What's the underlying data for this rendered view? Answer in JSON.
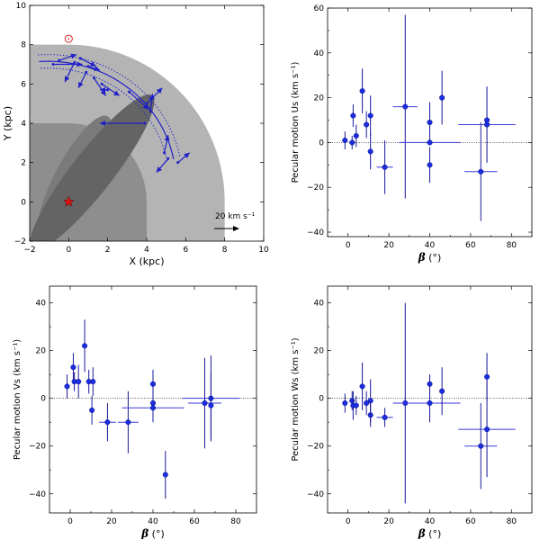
{
  "chart_data": [
    {
      "type": "scatter",
      "xlabel": "X (kpc)",
      "ylabel": "Y (kpc)",
      "xlim": [
        -2,
        10
      ],
      "ylim": [
        -2,
        10
      ],
      "xticks": [
        -2,
        0,
        2,
        4,
        6,
        8,
        10
      ],
      "yticks": [
        -2,
        0,
        2,
        4,
        6,
        8,
        10
      ],
      "annotation": "20 km s⁻¹",
      "sun": [
        0,
        8.3
      ],
      "galactic_center": [
        0,
        0
      ],
      "sources": [
        {
          "x": -0.8,
          "y": 7.0,
          "dx": 1.5,
          "dy": 0.0
        },
        {
          "x": -0.5,
          "y": 7.2,
          "dx": 0.9,
          "dy": 0.3
        },
        {
          "x": 0.3,
          "y": 7.1,
          "dx": -0.5,
          "dy": -1.0
        },
        {
          "x": 0.6,
          "y": 7.3,
          "dx": 0.8,
          "dy": -0.4
        },
        {
          "x": 0.9,
          "y": 6.6,
          "dx": -0.4,
          "dy": -0.8
        },
        {
          "x": 1.0,
          "y": 6.9,
          "dx": 0.6,
          "dy": -0.2
        },
        {
          "x": 1.3,
          "y": 6.3,
          "dx": 0.6,
          "dy": -0.9
        },
        {
          "x": 1.7,
          "y": 6.0,
          "dx": 0.9,
          "dy": -0.6
        },
        {
          "x": 2.0,
          "y": 5.7,
          "dx": -0.4,
          "dy": 0.0
        },
        {
          "x": 3.1,
          "y": 5.6,
          "dx": 1.0,
          "dy": -0.9
        },
        {
          "x": 3.9,
          "y": 4.0,
          "dx": -2.3,
          "dy": 0.0
        },
        {
          "x": 4.2,
          "y": 4.6,
          "dx": 0.1,
          "dy": 0.9
        },
        {
          "x": 4.0,
          "y": 5.0,
          "dx": 0.8,
          "dy": 0.8
        },
        {
          "x": 4.9,
          "y": 2.5,
          "dx": 0.2,
          "dy": 0.9
        },
        {
          "x": 5.1,
          "y": 2.2,
          "dx": -0.6,
          "dy": -0.7
        },
        {
          "x": 5.6,
          "y": 2.0,
          "dx": 0.6,
          "dy": 0.5
        }
      ]
    },
    {
      "type": "scatter",
      "xlabel": "β (°)",
      "ylabel": "Pecular motion Us  (km s⁻¹)",
      "xlim": [
        -10,
        90
      ],
      "ylim": [
        -42,
        60
      ],
      "xticks": [
        0,
        20,
        40,
        60,
        80
      ],
      "yticks": [
        -40,
        -20,
        0,
        20,
        40,
        60
      ],
      "points": [
        {
          "x": -1.5,
          "y": 1,
          "xerr": 0,
          "yerr": 4
        },
        {
          "x": 2,
          "y": 0,
          "xerr": 0,
          "yerr": 3
        },
        {
          "x": 2.5,
          "y": 12,
          "xerr": 0,
          "yerr": 5
        },
        {
          "x": 4,
          "y": 3,
          "xerr": 0,
          "yerr": 5
        },
        {
          "x": 7,
          "y": 23,
          "xerr": 0,
          "yerr": 10
        },
        {
          "x": 9,
          "y": 8,
          "xerr": 0,
          "yerr": 6
        },
        {
          "x": 11,
          "y": 12,
          "xerr": 0,
          "yerr": 9
        },
        {
          "x": 11,
          "y": -4,
          "xerr": 0,
          "yerr": 8
        },
        {
          "x": 18,
          "y": -11,
          "xerr": 4,
          "yerr": 12
        },
        {
          "x": 28,
          "y": 16,
          "xerr": 6,
          "yerr": 41
        },
        {
          "x": 40,
          "y": -10,
          "xerr": 0,
          "yerr": 8
        },
        {
          "x": 40,
          "y": 9,
          "xerr": 0,
          "yerr": 9
        },
        {
          "x": 40,
          "y": 0,
          "xerr": 15,
          "yerr": 0
        },
        {
          "x": 46,
          "y": 20,
          "xerr": 0,
          "yerr": 12
        },
        {
          "x": 65,
          "y": -13,
          "xerr": 8,
          "yerr": 22
        },
        {
          "x": 68,
          "y": 8,
          "xerr": 14,
          "yerr": 17
        },
        {
          "x": 68,
          "y": 10,
          "xerr": 0,
          "yerr": 0
        }
      ]
    },
    {
      "type": "scatter",
      "xlabel": "β (°)",
      "ylabel": "Pecular motion Vs  (km s⁻¹)",
      "xlim": [
        -10,
        90
      ],
      "ylim": [
        -48,
        47
      ],
      "xticks": [
        0,
        20,
        40,
        60,
        80
      ],
      "yticks": [
        -40,
        -20,
        0,
        20,
        40
      ],
      "points": [
        {
          "x": -1.5,
          "y": 5,
          "xerr": 0,
          "yerr": 5
        },
        {
          "x": 1.5,
          "y": 13,
          "xerr": 0,
          "yerr": 6
        },
        {
          "x": 2,
          "y": 7,
          "xerr": 0,
          "yerr": 4
        },
        {
          "x": 4,
          "y": 7,
          "xerr": 0,
          "yerr": 7
        },
        {
          "x": 7,
          "y": 22,
          "xerr": 0,
          "yerr": 11
        },
        {
          "x": 9,
          "y": 7,
          "xerr": 0,
          "yerr": 5
        },
        {
          "x": 11,
          "y": 7,
          "xerr": 0,
          "yerr": 6
        },
        {
          "x": 10.5,
          "y": -5,
          "xerr": 0,
          "yerr": 6
        },
        {
          "x": 18,
          "y": -10,
          "xerr": 4,
          "yerr": 8
        },
        {
          "x": 28,
          "y": -10,
          "xerr": 5,
          "yerr": 13
        },
        {
          "x": 40,
          "y": 6,
          "xerr": 0,
          "yerr": 6
        },
        {
          "x": 40,
          "y": -2,
          "xerr": 0,
          "yerr": 8
        },
        {
          "x": 40,
          "y": -4,
          "xerr": 15,
          "yerr": 0
        },
        {
          "x": 46,
          "y": -32,
          "xerr": 0,
          "yerr": 10
        },
        {
          "x": 65,
          "y": -2,
          "xerr": 8,
          "yerr": 19
        },
        {
          "x": 68,
          "y": 0,
          "xerr": 14,
          "yerr": 18
        },
        {
          "x": 68,
          "y": -3,
          "xerr": 0,
          "yerr": 14
        }
      ]
    },
    {
      "type": "scatter",
      "xlabel": "β (°)",
      "ylabel": "Pecular motion Ws  (km s⁻¹)",
      "xlim": [
        -10,
        90
      ],
      "ylim": [
        -48,
        47
      ],
      "xticks": [
        0,
        20,
        40,
        60,
        80
      ],
      "yticks": [
        -40,
        -20,
        0,
        20,
        40
      ],
      "points": [
        {
          "x": -1.5,
          "y": -2,
          "xerr": 0,
          "yerr": 4
        },
        {
          "x": 2,
          "y": -1,
          "xerr": 0,
          "yerr": 4
        },
        {
          "x": 2.5,
          "y": -3,
          "xerr": 0,
          "yerr": 6
        },
        {
          "x": 4,
          "y": -3,
          "xerr": 0,
          "yerr": 4
        },
        {
          "x": 7,
          "y": 5,
          "xerr": 0,
          "yerr": 10
        },
        {
          "x": 9,
          "y": -2,
          "xerr": 0,
          "yerr": 5
        },
        {
          "x": 11,
          "y": -7,
          "xerr": 0,
          "yerr": 5
        },
        {
          "x": 11,
          "y": -1,
          "xerr": 0,
          "yerr": 9
        },
        {
          "x": 18,
          "y": -8,
          "xerr": 4,
          "yerr": 4
        },
        {
          "x": 28,
          "y": -2,
          "xerr": 6,
          "yerr": 42
        },
        {
          "x": 40,
          "y": 6,
          "xerr": 0,
          "yerr": 4
        },
        {
          "x": 40,
          "y": -2,
          "xerr": 15,
          "yerr": 8
        },
        {
          "x": 46,
          "y": 3,
          "xerr": 0,
          "yerr": 10
        },
        {
          "x": 65,
          "y": -20,
          "xerr": 8,
          "yerr": 18
        },
        {
          "x": 68,
          "y": 9,
          "xerr": 0,
          "yerr": 10
        },
        {
          "x": 68,
          "y": -13,
          "xerr": 14,
          "yerr": 20
        }
      ]
    }
  ]
}
